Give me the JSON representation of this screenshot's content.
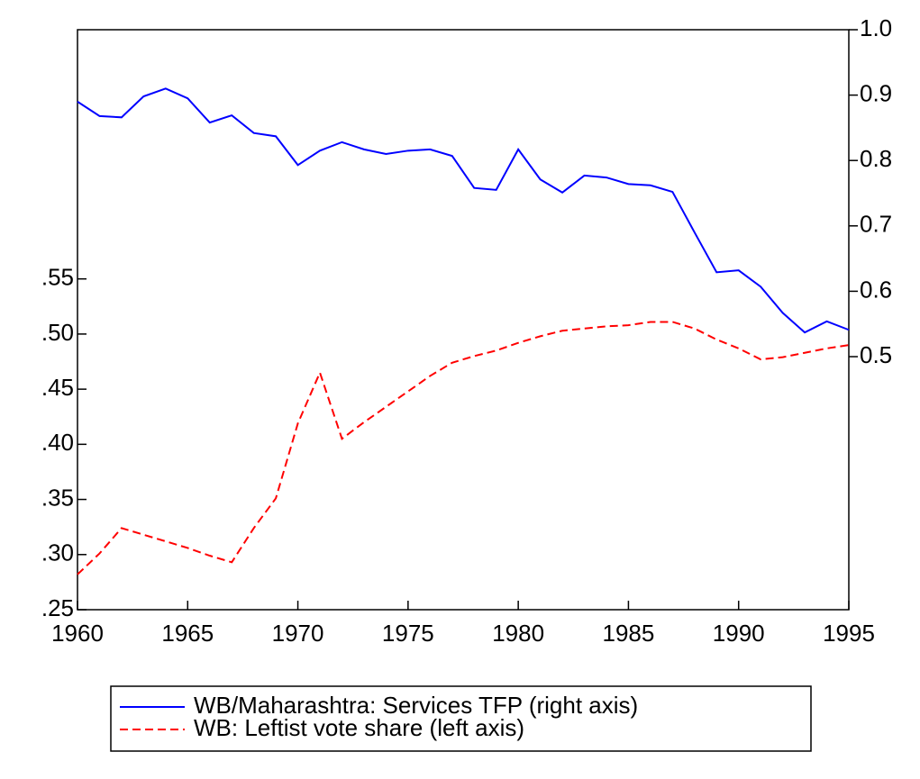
{
  "chart_data": {
    "type": "line",
    "x": [
      1960,
      1961,
      1962,
      1963,
      1964,
      1965,
      1966,
      1967,
      1968,
      1969,
      1970,
      1971,
      1972,
      1973,
      1974,
      1975,
      1976,
      1977,
      1978,
      1979,
      1980,
      1981,
      1982,
      1983,
      1984,
      1985,
      1986,
      1987,
      1988,
      1989,
      1990,
      1991,
      1992,
      1993,
      1994,
      1995
    ],
    "xlim": [
      1960,
      1995
    ],
    "xticks": [
      1960,
      1965,
      1970,
      1975,
      1980,
      1985,
      1990,
      1995
    ],
    "ylim": [
      0.25,
      0.776
    ],
    "yticks": [
      {
        "value": 0.25,
        "label": ".25"
      },
      {
        "value": 0.3,
        "label": ".30"
      },
      {
        "value": 0.35,
        "label": ".35"
      },
      {
        "value": 0.4,
        "label": ".40"
      },
      {
        "value": 0.45,
        "label": ".45"
      },
      {
        "value": 0.5,
        "label": ".50"
      },
      {
        "value": 0.55,
        "label": ".55"
      }
    ],
    "y2lim": [
      0.113,
      1.0
    ],
    "y2ticks": [
      0.5,
      0.6,
      0.7,
      0.8,
      0.9,
      {
        "value": 1.0,
        "label": "1.0"
      }
    ],
    "legend": "bottom",
    "series": [
      {
        "name": "WB/Maharashtra: Services TFP (right axis)",
        "color": "#0000ff",
        "axis": "y2",
        "linestyle": "solid",
        "values": [
          0.89,
          0.868,
          0.866,
          0.898,
          0.91,
          0.895,
          0.858,
          0.869,
          0.842,
          0.837,
          0.793,
          0.815,
          0.828,
          0.817,
          0.81,
          0.815,
          0.817,
          0.807,
          0.758,
          0.755,
          0.817,
          0.771,
          0.751,
          0.777,
          0.774,
          0.764,
          0.762,
          0.752,
          0.69,
          0.629,
          0.632,
          0.607,
          0.567,
          0.537,
          0.554,
          0.541
        ]
      },
      {
        "name": "WB: Leftist vote share (left axis)",
        "color": "#ff0000",
        "axis": "y",
        "linestyle": "dashed",
        "values": [
          0.282,
          0.301,
          0.324,
          0.318,
          0.312,
          0.306,
          0.299,
          0.293,
          0.324,
          0.351,
          0.419,
          0.465,
          0.405,
          0.42,
          0.434,
          0.448,
          0.462,
          0.474,
          0.48,
          0.485,
          0.492,
          0.498,
          0.503,
          0.505,
          0.507,
          0.508,
          0.511,
          0.511,
          0.505,
          0.495,
          0.487,
          0.477,
          0.479,
          0.483,
          0.487,
          0.49
        ]
      }
    ]
  }
}
